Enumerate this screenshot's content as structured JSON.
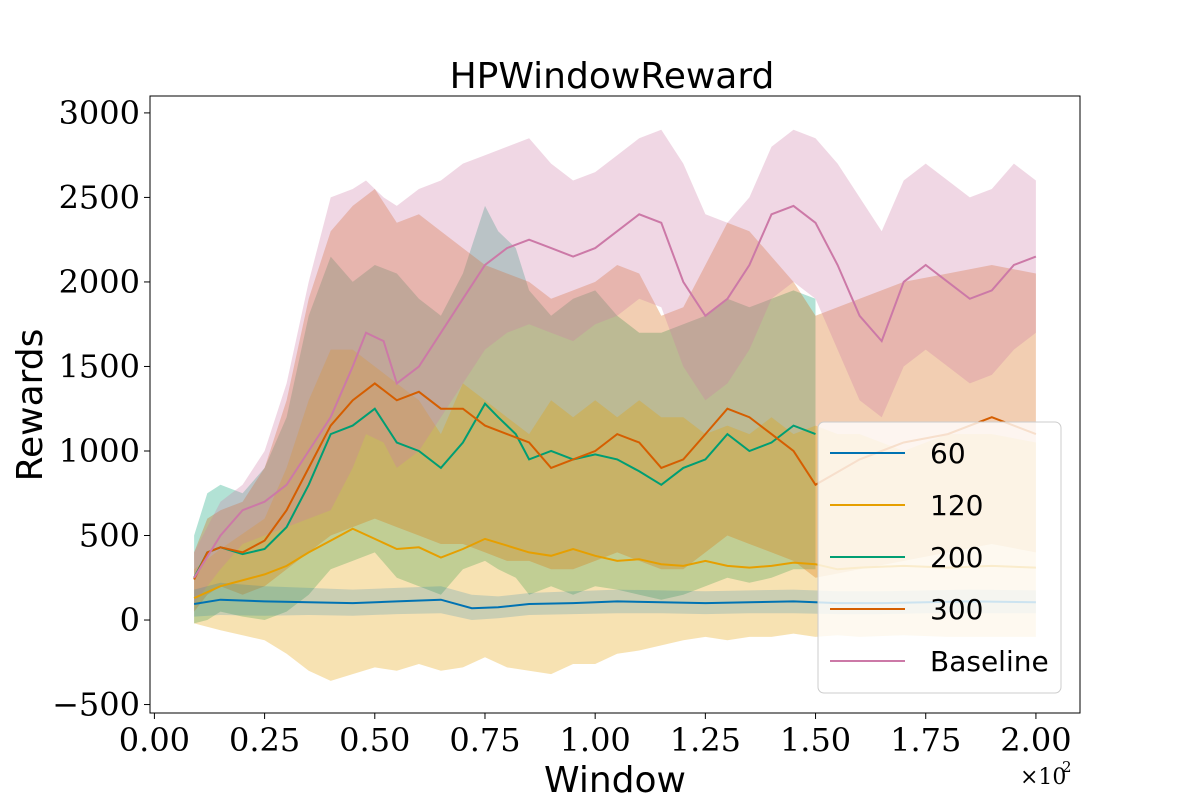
{
  "chart_data": {
    "type": "line",
    "title": "HPWindowReward",
    "xlabel": "Window",
    "ylabel": "Rewards",
    "x_offset_label": "×10",
    "x_offset_exponent": "2",
    "xlim": [
      -0.01,
      2.1
    ],
    "ylim": [
      -550,
      3100
    ],
    "x_ticks": [
      0.0,
      0.25,
      0.5,
      0.75,
      1.0,
      1.25,
      1.5,
      1.75,
      2.0
    ],
    "x_tick_labels": [
      "0.00",
      "0.25",
      "0.50",
      "0.75",
      "1.00",
      "1.25",
      "1.50",
      "1.75",
      "2.00"
    ],
    "y_ticks": [
      -500,
      0,
      500,
      1000,
      1500,
      2000,
      2500,
      3000
    ],
    "y_tick_labels": [
      "−500",
      "0",
      "500",
      "1000",
      "1500",
      "2000",
      "2500",
      "3000"
    ],
    "grid": false,
    "legend_position": "lower-right",
    "series": [
      {
        "name": "60",
        "color": "#0072b2",
        "band_alpha": 0.18,
        "x": [
          0.09,
          0.15,
          0.25,
          0.35,
          0.45,
          0.55,
          0.65,
          0.72,
          0.78,
          0.85,
          0.95,
          1.05,
          1.15,
          1.25,
          1.35,
          1.45,
          1.55,
          1.65,
          1.75,
          1.85,
          2.0
        ],
        "y": [
          95,
          120,
          110,
          105,
          100,
          110,
          120,
          70,
          75,
          95,
          100,
          110,
          105,
          100,
          105,
          110,
          100,
          100,
          105,
          110,
          105
        ],
        "upper": [
          180,
          220,
          200,
          190,
          180,
          190,
          200,
          150,
          140,
          160,
          170,
          180,
          175,
          170,
          175,
          180,
          170,
          170,
          175,
          180,
          175
        ],
        "lower": [
          20,
          30,
          25,
          30,
          25,
          35,
          40,
          0,
          10,
          30,
          35,
          40,
          40,
          35,
          40,
          40,
          35,
          35,
          40,
          40,
          40
        ]
      },
      {
        "name": "120",
        "color": "#e69f00",
        "band_alpha": 0.3,
        "x": [
          0.09,
          0.15,
          0.25,
          0.3,
          0.35,
          0.4,
          0.45,
          0.5,
          0.55,
          0.6,
          0.65,
          0.7,
          0.75,
          0.8,
          0.85,
          0.9,
          0.95,
          1.0,
          1.05,
          1.1,
          1.15,
          1.2,
          1.25,
          1.3,
          1.35,
          1.4,
          1.45,
          1.5,
          1.55,
          1.6,
          1.7,
          1.8,
          1.9,
          2.0
        ],
        "y": [
          130,
          200,
          270,
          320,
          400,
          470,
          540,
          480,
          420,
          430,
          370,
          420,
          480,
          440,
          400,
          380,
          420,
          380,
          350,
          360,
          330,
          320,
          350,
          320,
          310,
          320,
          340,
          330,
          300,
          310,
          320,
          310,
          320,
          310
        ],
        "upper": [
          300,
          420,
          600,
          900,
          1300,
          1600,
          1600,
          1500,
          1400,
          1300,
          1100,
          1400,
          1300,
          1200,
          1100,
          1300,
          1200,
          1300,
          1200,
          1300,
          1200,
          1200,
          1100,
          1150,
          1100,
          1200,
          1100,
          1150,
          1100,
          1100,
          1000,
          1100,
          1100,
          1050
        ],
        "lower": [
          -20,
          -60,
          -120,
          -200,
          -300,
          -360,
          -320,
          -280,
          -300,
          -260,
          -300,
          -280,
          -220,
          -280,
          -300,
          -320,
          -260,
          -260,
          -200,
          -180,
          -150,
          -120,
          -100,
          -120,
          -100,
          -100,
          -80,
          -100,
          -90,
          -100,
          -90,
          -100,
          -100,
          -100
        ]
      },
      {
        "name": "200",
        "color": "#009e73",
        "band_alpha": 0.3,
        "x": [
          0.09,
          0.12,
          0.15,
          0.2,
          0.25,
          0.3,
          0.35,
          0.4,
          0.45,
          0.5,
          0.55,
          0.6,
          0.65,
          0.7,
          0.75,
          0.78,
          0.82,
          0.85,
          0.9,
          0.95,
          1.0,
          1.05,
          1.1,
          1.15,
          1.2,
          1.25,
          1.3,
          1.35,
          1.4,
          1.45,
          1.5
        ],
        "y": [
          250,
          400,
          430,
          390,
          420,
          550,
          800,
          1100,
          1150,
          1250,
          1050,
          1000,
          900,
          1050,
          1280,
          1200,
          1100,
          950,
          1000,
          950,
          980,
          950,
          880,
          800,
          900,
          950,
          1100,
          1000,
          1050,
          1150,
          1100
        ],
        "upper": [
          500,
          750,
          800,
          750,
          900,
          1200,
          1800,
          2150,
          2000,
          2100,
          2050,
          1900,
          1800,
          2050,
          2450,
          2300,
          2200,
          1950,
          1800,
          1900,
          1950,
          1800,
          1700,
          1700,
          1750,
          1800,
          1900,
          1850,
          1900,
          1950,
          1900
        ],
        "lower": [
          -20,
          0,
          50,
          20,
          0,
          50,
          150,
          300,
          350,
          400,
          250,
          200,
          150,
          300,
          350,
          300,
          250,
          150,
          200,
          150,
          200,
          180,
          150,
          120,
          150,
          200,
          250,
          220,
          250,
          300,
          300
        ]
      },
      {
        "name": "300",
        "color": "#d55e00",
        "band_alpha": 0.3,
        "x": [
          0.09,
          0.12,
          0.15,
          0.2,
          0.25,
          0.3,
          0.35,
          0.4,
          0.45,
          0.5,
          0.55,
          0.6,
          0.65,
          0.7,
          0.75,
          0.8,
          0.85,
          0.9,
          0.95,
          1.0,
          1.05,
          1.1,
          1.15,
          1.2,
          1.25,
          1.3,
          1.35,
          1.4,
          1.45,
          1.5,
          1.6,
          1.7,
          1.8,
          1.9,
          2.0
        ],
        "y": [
          240,
          400,
          430,
          400,
          470,
          650,
          900,
          1150,
          1300,
          1400,
          1300,
          1350,
          1250,
          1250,
          1150,
          1100,
          1050,
          900,
          950,
          1000,
          1100,
          1050,
          900,
          950,
          1100,
          1250,
          1200,
          1100,
          1000,
          800,
          950,
          1050,
          1100,
          1200,
          1100
        ],
        "upper": [
          400,
          600,
          650,
          700,
          900,
          1300,
          1900,
          2300,
          2450,
          2550,
          2350,
          2400,
          2300,
          2200,
          2100,
          2050,
          2000,
          1900,
          1950,
          2000,
          2100,
          2050,
          1800,
          1850,
          2100,
          2350,
          2300,
          2150,
          2000,
          1800,
          1900,
          2000,
          2050,
          2100,
          2050
        ],
        "lower": [
          50,
          150,
          200,
          150,
          200,
          300,
          400,
          500,
          550,
          600,
          550,
          500,
          450,
          450,
          400,
          350,
          350,
          300,
          300,
          350,
          400,
          350,
          300,
          300,
          400,
          500,
          450,
          400,
          350,
          250,
          300,
          350,
          400,
          450,
          400
        ]
      },
      {
        "name": "Baseline",
        "color": "#cc79a7",
        "band_alpha": 0.3,
        "x": [
          0.09,
          0.15,
          0.2,
          0.25,
          0.3,
          0.35,
          0.4,
          0.45,
          0.48,
          0.52,
          0.55,
          0.6,
          0.65,
          0.7,
          0.75,
          0.8,
          0.85,
          0.9,
          0.95,
          1.0,
          1.05,
          1.1,
          1.15,
          1.2,
          1.25,
          1.3,
          1.35,
          1.4,
          1.45,
          1.5,
          1.55,
          1.6,
          1.65,
          1.7,
          1.75,
          1.8,
          1.85,
          1.9,
          1.95,
          2.0
        ],
        "y": [
          250,
          500,
          650,
          700,
          800,
          1000,
          1200,
          1500,
          1700,
          1650,
          1400,
          1500,
          1700,
          1900,
          2100,
          2200,
          2250,
          2200,
          2150,
          2200,
          2300,
          2400,
          2350,
          2000,
          1800,
          1900,
          2100,
          2400,
          2450,
          2350,
          2100,
          1800,
          1650,
          2000,
          2100,
          2000,
          1900,
          1950,
          2100,
          2150
        ],
        "upper": [
          400,
          700,
          800,
          1000,
          1400,
          2000,
          2500,
          2550,
          2600,
          2500,
          2450,
          2550,
          2600,
          2700,
          2750,
          2800,
          2850,
          2700,
          2600,
          2650,
          2750,
          2850,
          2900,
          2700,
          2400,
          2350,
          2500,
          2800,
          2900,
          2850,
          2700,
          2500,
          2300,
          2600,
          2700,
          2600,
          2500,
          2550,
          2700,
          2600
        ],
        "lower": [
          100,
          300,
          450,
          500,
          550,
          600,
          650,
          900,
          1100,
          1050,
          900,
          1000,
          1200,
          1400,
          1600,
          1700,
          1750,
          1700,
          1650,
          1750,
          1800,
          1900,
          1850,
          1500,
          1300,
          1400,
          1600,
          1900,
          2000,
          1900,
          1600,
          1300,
          1200,
          1500,
          1600,
          1500,
          1400,
          1450,
          1600,
          1700
        ]
      }
    ]
  }
}
